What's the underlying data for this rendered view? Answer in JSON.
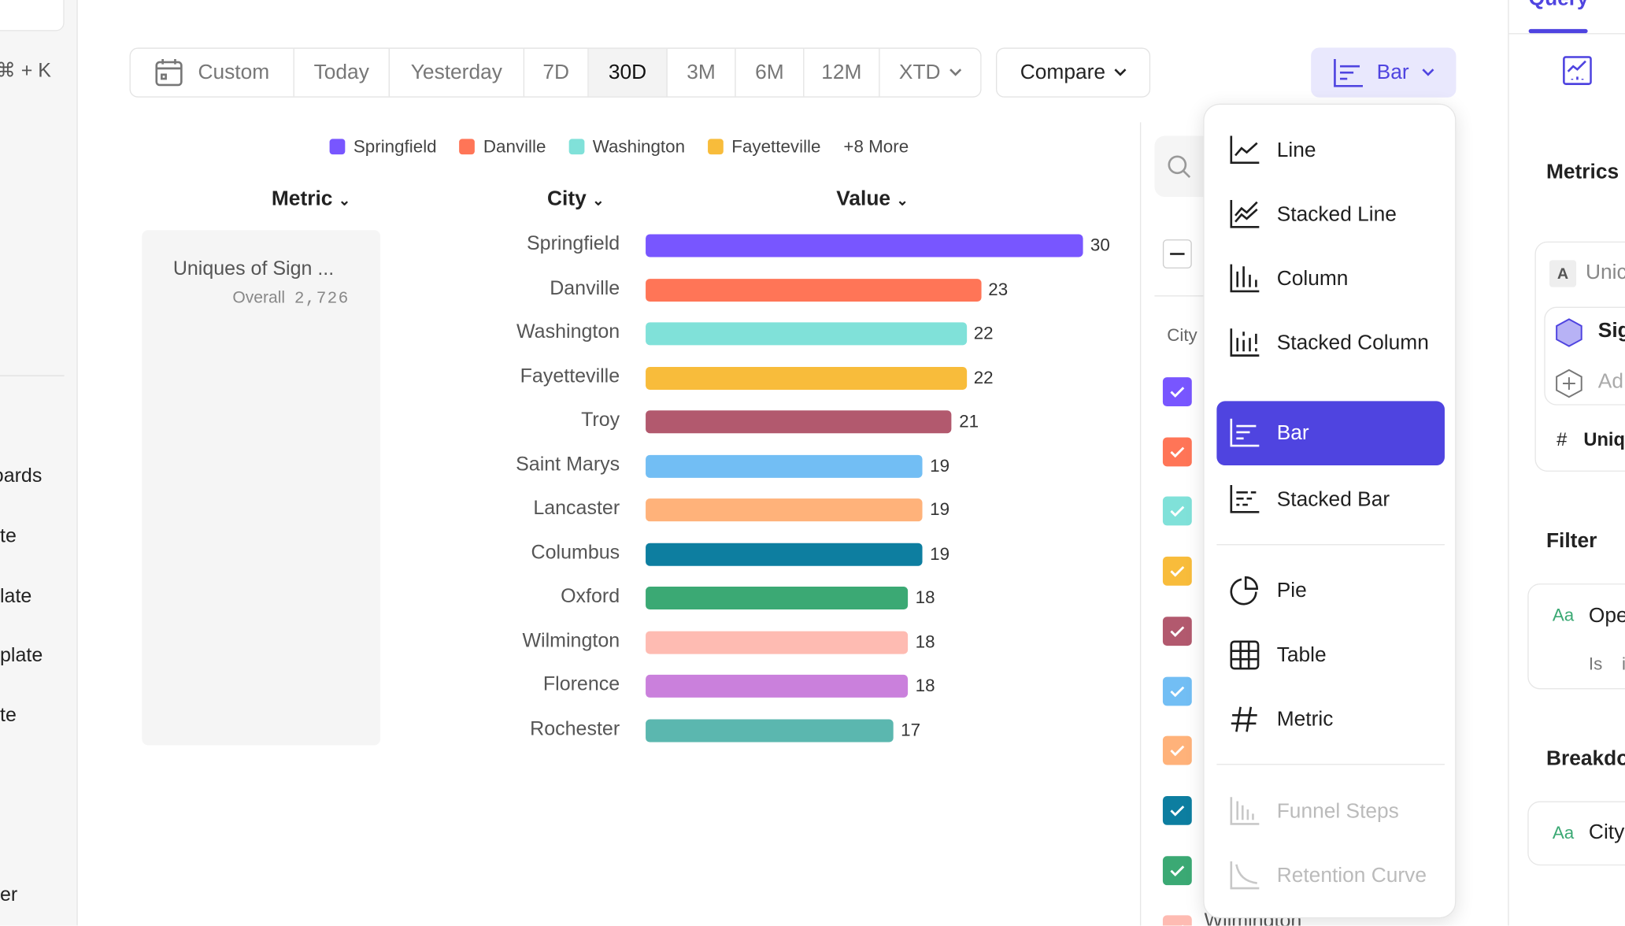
{
  "sidebar": {
    "shortcut": "⌘ + K",
    "items": [
      "oards",
      "te",
      "late",
      "plate",
      "te",
      "er"
    ]
  },
  "toolbar": {
    "date_ranges": [
      "Custom",
      "Today",
      "Yesterday",
      "7D",
      "30D",
      "3M",
      "6M",
      "12M",
      "XTD"
    ],
    "selected_range": "30D",
    "compare_label": "Compare",
    "chart_type_label": "Bar"
  },
  "legend": {
    "items": [
      {
        "name": "Springfield",
        "color": "#7856ff"
      },
      {
        "name": "Danville",
        "color": "#ff7557"
      },
      {
        "name": "Washington",
        "color": "#80e1d9"
      },
      {
        "name": "Fayetteville",
        "color": "#f8bc3b"
      }
    ],
    "more": "+8 More"
  },
  "table": {
    "headers": [
      "Metric",
      "City",
      "Value"
    ],
    "metric_name": "Uniques of Sign ...",
    "overall_label": "Overall",
    "overall_value": "2,726"
  },
  "chart_data": {
    "type": "bar",
    "orientation": "horizontal",
    "categories": [
      "Springfield",
      "Danville",
      "Washington",
      "Fayetteville",
      "Troy",
      "Saint Marys",
      "Lancaster",
      "Columbus",
      "Oxford",
      "Wilmington",
      "Florence",
      "Rochester"
    ],
    "values": [
      30,
      23,
      22,
      22,
      21,
      19,
      19,
      19,
      18,
      18,
      18,
      17
    ],
    "colors": [
      "#7856ff",
      "#ff7557",
      "#80e1d9",
      "#f8bc3b",
      "#b2596e",
      "#72bef4",
      "#ffb27a",
      "#0d7ea0",
      "#3ba974",
      "#febbb2",
      "#ca80dc",
      "#5bb7af"
    ],
    "data_labels": true
  },
  "series_panel": {
    "header": "City",
    "partial_label": "Wilmington"
  },
  "chart_menu": {
    "items": [
      {
        "label": "Line",
        "icon": "line-chart-icon"
      },
      {
        "label": "Stacked Line",
        "icon": "stacked-line-icon"
      },
      {
        "label": "Column",
        "icon": "column-chart-icon"
      },
      {
        "label": "Stacked Column",
        "icon": "stacked-column-icon"
      },
      {
        "label": "Bar",
        "icon": "bar-chart-icon",
        "selected": true
      },
      {
        "label": "Stacked Bar",
        "icon": "stacked-bar-icon"
      },
      {
        "label": "Pie",
        "icon": "pie-chart-icon"
      },
      {
        "label": "Table",
        "icon": "table-icon"
      },
      {
        "label": "Metric",
        "icon": "hash-icon"
      },
      {
        "label": "Funnel Steps",
        "icon": "funnel-steps-icon",
        "disabled": true
      },
      {
        "label": "Retention Curve",
        "icon": "retention-curve-icon",
        "disabled": true
      }
    ]
  },
  "right_panel": {
    "tab": "Query",
    "metrics_title": "Metrics",
    "metric_letter": "A",
    "metric_name": "Unic",
    "event": "Sig",
    "add": "Ad",
    "measure": "Uniqu",
    "filter_title": "Filter",
    "filter_prop": "Ope",
    "filter_op": "Is",
    "filter_val": "i",
    "breakdown_title": "Breakdo",
    "breakdown_prop": "City",
    "type_badge": "Aa"
  },
  "colors": {
    "accent": "#4f44e0",
    "accent_bg": "#e9e8fd"
  }
}
